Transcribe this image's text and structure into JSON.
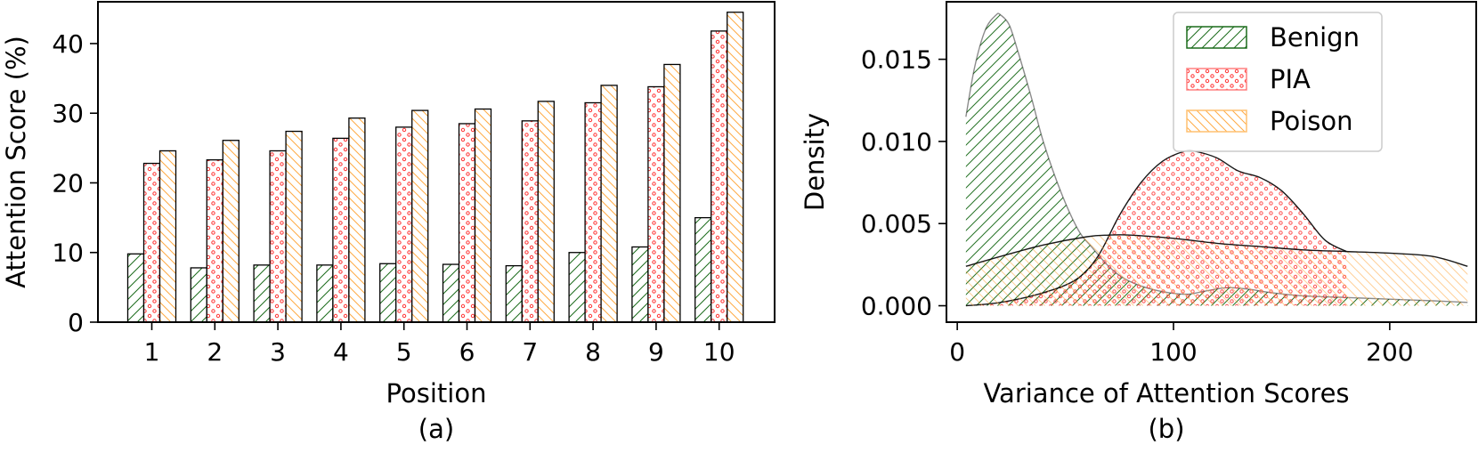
{
  "colors": {
    "benign": "#1a6b1a",
    "pia": "#ff3333",
    "poison": "#ffaa44",
    "outline": "#000000",
    "legend_frame": "#cccccc"
  },
  "chart_data": [
    {
      "type": "bar",
      "caption": "(a)",
      "xlabel": "Position",
      "ylabel": "Attention Score (%)",
      "categories": [
        "1",
        "2",
        "3",
        "4",
        "5",
        "6",
        "7",
        "8",
        "9",
        "10"
      ],
      "ylim": [
        0,
        46
      ],
      "yticks": [
        "0",
        "10",
        "20",
        "30",
        "40"
      ],
      "series": [
        {
          "key": "benign",
          "values": [
            9.8,
            7.8,
            8.2,
            8.2,
            8.4,
            8.3,
            8.1,
            10.0,
            10.8,
            15.0
          ]
        },
        {
          "key": "pia",
          "values": [
            22.8,
            23.3,
            24.6,
            26.4,
            28.0,
            28.5,
            28.9,
            31.5,
            33.8,
            41.8
          ]
        },
        {
          "key": "poison",
          "values": [
            24.6,
            26.1,
            27.4,
            29.3,
            30.4,
            30.6,
            31.7,
            34.0,
            37.0,
            44.5
          ]
        }
      ],
      "grid": false,
      "legend": "none"
    },
    {
      "type": "area",
      "caption": "(b)",
      "xlabel": "Variance of Attention Scores",
      "ylabel": "Density",
      "xlim": [
        -5,
        240
      ],
      "ylim": [
        -0.001,
        0.0185
      ],
      "xticks": [
        "0",
        "100",
        "200"
      ],
      "yticks": [
        "0.000",
        "0.005",
        "0.010",
        "0.015"
      ],
      "legend_position": "top-right",
      "grid": false,
      "series": [
        {
          "key": "benign",
          "name": "Benign",
          "x": [
            4,
            8,
            13,
            18,
            20,
            24,
            28,
            34,
            40,
            48,
            56,
            62,
            70,
            78,
            90,
            105,
            115,
            125,
            135,
            145,
            160,
            180,
            200,
            220,
            236
          ],
          "y": [
            0.0115,
            0.0145,
            0.0168,
            0.0177,
            0.0177,
            0.0171,
            0.0155,
            0.0128,
            0.0099,
            0.0069,
            0.0046,
            0.0036,
            0.0024,
            0.0016,
            0.001,
            0.0007,
            0.0009,
            0.0011,
            0.001,
            0.0008,
            0.0006,
            0.0005,
            0.0004,
            0.0003,
            0.0002
          ]
        },
        {
          "key": "pia",
          "name": "PIA",
          "x": [
            4,
            20,
            40,
            55,
            65,
            75,
            85,
            95,
            105,
            110,
            120,
            130,
            140,
            150,
            160,
            170,
            180
          ],
          "y": [
            0,
            0.0002,
            0.0008,
            0.0016,
            0.003,
            0.0055,
            0.0075,
            0.0088,
            0.0094,
            0.0094,
            0.009,
            0.0082,
            0.0078,
            0.007,
            0.0056,
            0.004,
            0.0033
          ]
        },
        {
          "key": "poison",
          "name": "Poison",
          "x": [
            4,
            20,
            40,
            60,
            70,
            80,
            100,
            120,
            140,
            160,
            180,
            200,
            220,
            236
          ],
          "y": [
            0.0024,
            0.003,
            0.0037,
            0.0042,
            0.0043,
            0.0043,
            0.0041,
            0.0038,
            0.0036,
            0.0034,
            0.0033,
            0.0032,
            0.003,
            0.0024
          ]
        }
      ]
    }
  ]
}
